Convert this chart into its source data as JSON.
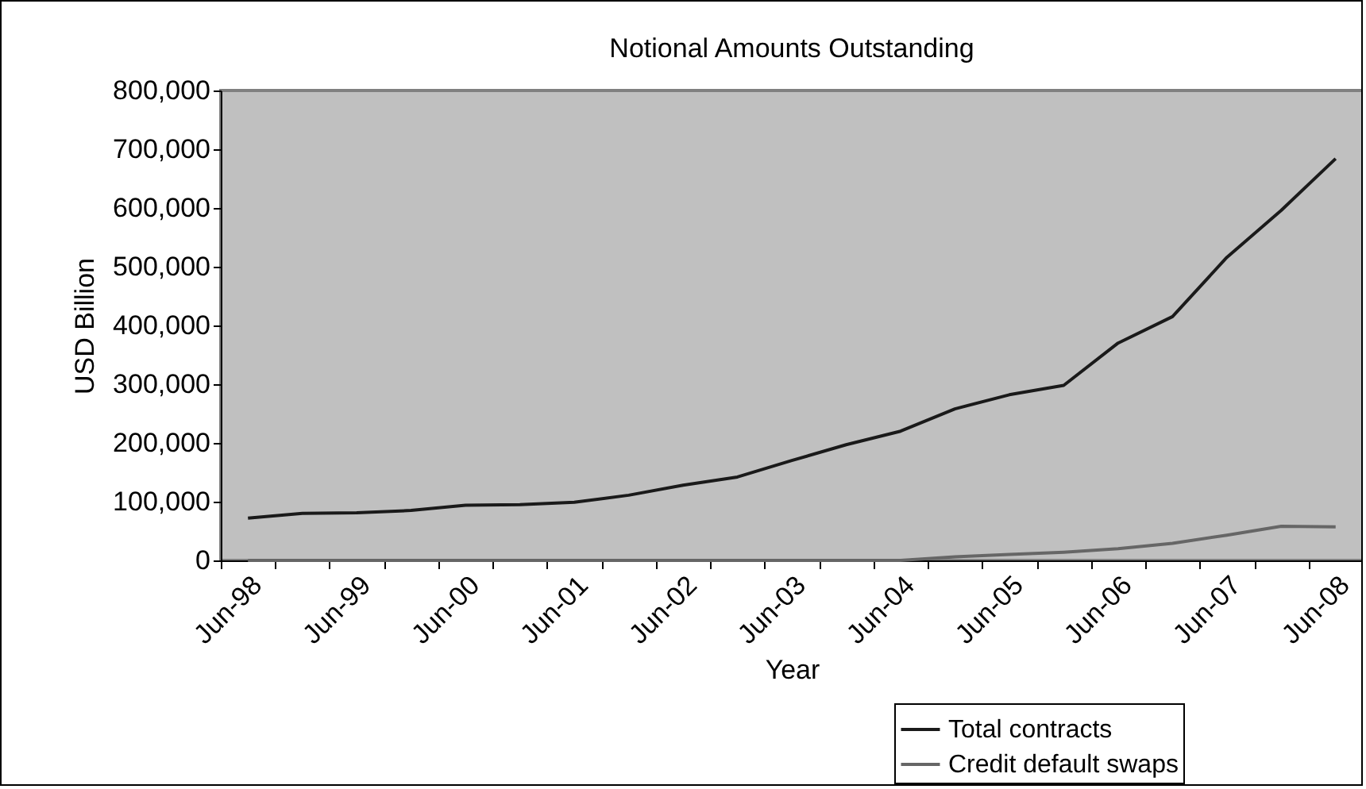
{
  "chart_data": {
    "type": "line",
    "title": "Notional Amounts Outstanding",
    "xlabel": "Year",
    "ylabel": "USD Billion",
    "categories": [
      "Jun-98",
      null,
      "Jun-99",
      null,
      "Jun-00",
      null,
      "Jun-01",
      null,
      "Jun-02",
      null,
      "Jun-03",
      null,
      "Jun-04",
      null,
      "Jun-05",
      null,
      "Jun-06",
      null,
      "Jun-07",
      null,
      "Jun-08"
    ],
    "series": [
      {
        "name": "Total contracts",
        "color": "#1a1a1a",
        "values": [
          72000,
          80000,
          81000,
          85000,
          94000,
          95000,
          99000,
          111000,
          128000,
          142000,
          170000,
          197000,
          220000,
          258000,
          282000,
          298000,
          370000,
          415000,
          516000,
          596000,
          684000
        ]
      },
      {
        "name": "Credit default swaps",
        "color": "#666666",
        "values": [
          0,
          0,
          0,
          0,
          0,
          0,
          0,
          0,
          0,
          0,
          0,
          0,
          0,
          6000,
          10000,
          14000,
          20000,
          29000,
          43000,
          58000,
          57000
        ]
      }
    ],
    "ylim": [
      0,
      800000
    ],
    "yticks": [
      0,
      {
        "value": 100000,
        "label": "100,000"
      },
      {
        "value": 200000,
        "label": "200,000"
      },
      {
        "value": 300000,
        "label": "300,000"
      },
      {
        "value": 400000,
        "label": "400,000"
      },
      {
        "value": 500000,
        "label": "500,000"
      },
      {
        "value": 600000,
        "label": "600,000"
      },
      {
        "value": 700000,
        "label": "700,000"
      },
      {
        "value": 800000,
        "label": "800,000"
      }
    ],
    "grid": false,
    "legend": "bottom right"
  }
}
